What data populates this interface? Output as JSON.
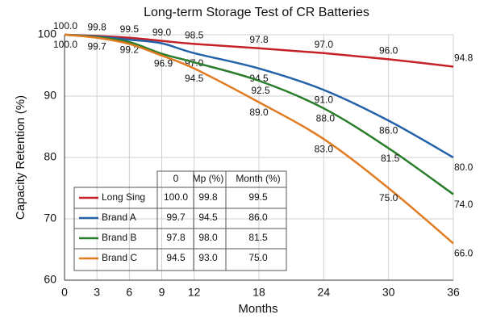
{
  "chart_data": {
    "type": "line",
    "title": "Long-term Storage Test of CR Batteries",
    "x_label": "Months",
    "y_label": "Capacity Retention (%)",
    "x": [
      0,
      3,
      6,
      9,
      12,
      18,
      24,
      30,
      36
    ],
    "xlim": [
      0,
      36
    ],
    "xticks": [
      0,
      3,
      6,
      9,
      12,
      18,
      24,
      30,
      36
    ],
    "ylim": [
      60,
      100
    ],
    "yticks": [
      60,
      70,
      80,
      90,
      100
    ],
    "grid": true,
    "series": [
      {
        "name": "Long Sing",
        "color": "#c62028",
        "values": [
          100,
          99.8,
          99.5,
          99.0,
          98.5,
          97.8,
          97.0,
          96.0,
          94.8
        ],
        "value_labels": [
          "100.0",
          "99.8",
          "99.5",
          "99.0",
          "98.5",
          "97.8",
          "97.0",
          "96.0",
          "94.8"
        ]
      },
      {
        "name": "Brand A",
        "color": "#2262a8",
        "values": [
          100,
          99.7,
          99.2,
          98.6,
          97.0,
          94.5,
          91.0,
          86.0,
          80.0
        ],
        "value_labels": [
          "100.0",
          "99.7",
          "99.2",
          null,
          "97.0",
          "94.5",
          "91.0",
          "86.0",
          "80.0"
        ]
      },
      {
        "name": "Brand B",
        "color": "#2a7d2a",
        "values": [
          100,
          99.6,
          98.8,
          96.9,
          95.5,
          92.5,
          88.0,
          81.5,
          74.0
        ],
        "value_labels": [
          null,
          null,
          null,
          "96.9",
          null,
          "92.5",
          "88.0",
          "81.5",
          "74.0"
        ]
      },
      {
        "name": "Brand C",
        "color": "#e07b22",
        "values": [
          100,
          99.5,
          98.5,
          96.6,
          94.5,
          89.0,
          83.0,
          75.0,
          66.0
        ],
        "value_labels": [
          null,
          null,
          null,
          null,
          "94.5",
          "89.0",
          "83.0",
          "75.0",
          "66.0"
        ]
      }
    ],
    "legend_table": {
      "columns": [
        "0",
        "Mp (%)",
        "Month (%)"
      ],
      "rows": [
        [
          "100.0",
          "99.8",
          "99.5"
        ],
        [
          "99.7",
          "94.5",
          "86.0"
        ],
        [
          "97.8",
          "98.0",
          "81.5"
        ],
        [
          "94.5",
          "93.0",
          "75.0"
        ]
      ]
    }
  }
}
